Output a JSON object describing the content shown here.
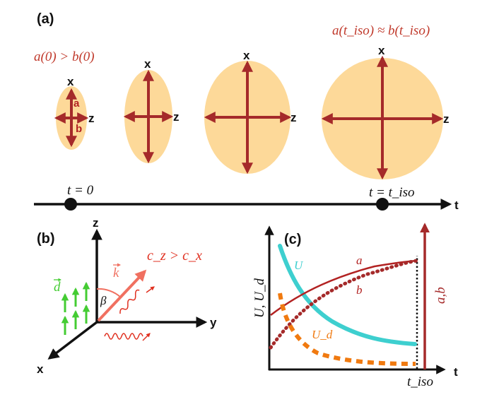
{
  "panels": {
    "a": {
      "label": "(a)",
      "condition_start": "a(0) > b(0)",
      "condition_end": "a(t_iso) ≈ b(t_iso)",
      "axis_x": "x",
      "axis_z": "z",
      "semi_axis_a": "a",
      "semi_axis_b": "b",
      "timeline": {
        "axis_label": "t",
        "start_label": "t = 0",
        "end_label": "t = t_iso"
      }
    },
    "b": {
      "label": "(b)",
      "axis_z": "z",
      "axis_y": "y",
      "axis_x": "x",
      "d_label": "d",
      "k_label": "k",
      "angle_label": "β",
      "relation": "c_z > c_x"
    },
    "c": {
      "label": "(c)",
      "y_left_label": "U, U_d",
      "y_right_label": "a,b",
      "x_label": "t",
      "x_tick": "t_iso",
      "curves": {
        "U": "U",
        "Ud": "U_d",
        "a": "a",
        "b": "b"
      }
    }
  },
  "colors": {
    "ellipse_fill": "#fdd999",
    "arrow_red": "#a52a2a",
    "label_red": "#c0392b",
    "green": "#44cc33",
    "pink": "#f07060",
    "cyan": "#3ecfcf",
    "orange": "#f07a10"
  }
}
